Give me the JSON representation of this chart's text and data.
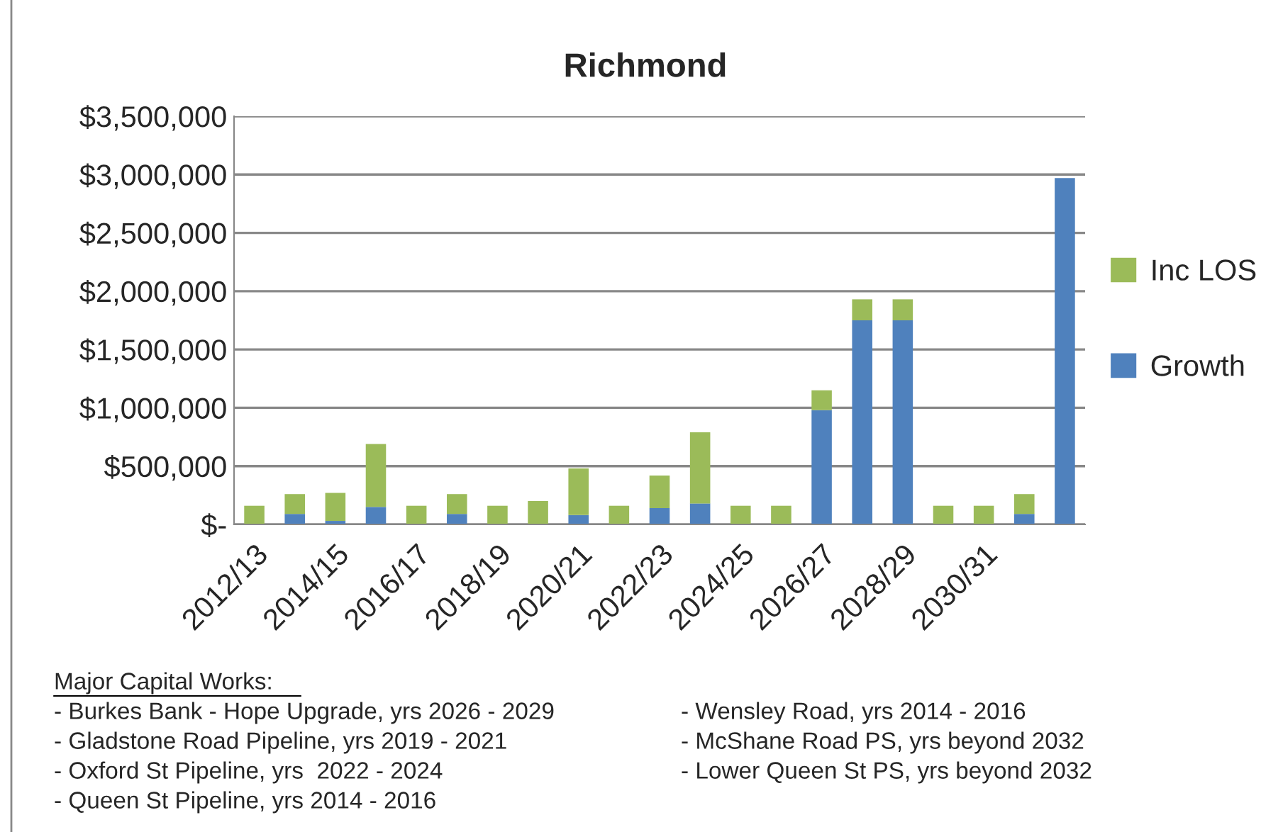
{
  "chart_data": {
    "type": "bar",
    "title": "Richmond",
    "stacked": true,
    "categories": [
      "2012/13",
      null,
      "2014/15",
      null,
      "2016/17",
      null,
      "2018/19",
      null,
      "2020/21",
      null,
      "2022/23",
      null,
      "2024/25",
      null,
      "2026/27",
      null,
      "2028/29",
      null,
      "2030/31",
      null,
      null
    ],
    "series": [
      {
        "name": "Growth",
        "color": "#4f81bd",
        "values": [
          0,
          90000,
          30000,
          150000,
          0,
          90000,
          0,
          0,
          80000,
          0,
          140000,
          180000,
          0,
          0,
          980000,
          1750000,
          1750000,
          0,
          0,
          90000,
          2970000
        ]
      },
      {
        "name": "Inc LOS",
        "color": "#9bbb59",
        "values": [
          160000,
          170000,
          240000,
          540000,
          160000,
          170000,
          160000,
          200000,
          400000,
          160000,
          280000,
          610000,
          160000,
          160000,
          170000,
          180000,
          180000,
          160000,
          160000,
          170000,
          0
        ]
      }
    ],
    "ylim": [
      0,
      3500000
    ],
    "yticks": [
      {
        "value": 0,
        "label": "$-"
      },
      {
        "value": 500000,
        "label": "$500,000"
      },
      {
        "value": 1000000,
        "label": "$1,000,000"
      },
      {
        "value": 1500000,
        "label": "$1,500,000"
      },
      {
        "value": 2000000,
        "label": "$2,000,000"
      },
      {
        "value": 2500000,
        "label": "$2,500,000"
      },
      {
        "value": 3000000,
        "label": "$3,000,000"
      },
      {
        "value": 3500000,
        "label": "$3,500,000"
      }
    ],
    "grid": "y",
    "legend": "right",
    "annotations": [
      "Major Capital Works:",
      "- Burkes Bank - Hope Upgrade, yrs 2026 - 2029",
      "- Gladstone Road Pipeline, yrs 2019 - 2021",
      "- Oxford St Pipeline, yrs  2022 - 2024",
      "- Queen St Pipeline, yrs 2014 - 2016",
      "- Wensley Road, yrs 2014 - 2016",
      "- McShane Road PS, yrs beyond 2032",
      "- Lower Queen St PS, yrs beyond 2032"
    ]
  }
}
